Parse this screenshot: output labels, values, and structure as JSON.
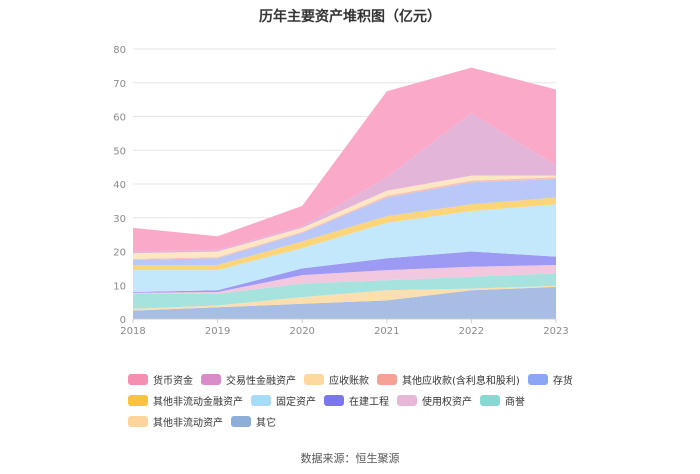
{
  "chart_data": {
    "type": "area",
    "stacked": true,
    "title": "历年主要资产堆积图（亿元）",
    "x": [
      "2018",
      "2019",
      "2020",
      "2021",
      "2022",
      "2023"
    ],
    "ylim": [
      0,
      80
    ],
    "yticks": [
      0,
      10,
      20,
      30,
      40,
      50,
      60,
      70,
      80
    ],
    "grid": true,
    "legend_position": "bottom",
    "series": [
      {
        "name": "其它",
        "color": "#a7bde3",
        "values": [
          2.5,
          3.5,
          4.5,
          5.5,
          8.5,
          9.5
        ]
      },
      {
        "name": "其他非流动资产",
        "color": "#fddfae",
        "values": [
          0.5,
          0.5,
          2.0,
          3.0,
          0.5,
          0.3
        ]
      },
      {
        "name": "商誉",
        "color": "#a6e3df",
        "values": [
          4.5,
          3.5,
          4.0,
          3.0,
          3.5,
          3.7
        ]
      },
      {
        "name": "使用权资产",
        "color": "#f2c8df",
        "values": [
          0.3,
          0.5,
          2.5,
          3.0,
          3.0,
          2.5
        ]
      },
      {
        "name": "在建工程",
        "color": "#9d9af3",
        "values": [
          0.2,
          0.5,
          2.0,
          3.5,
          4.5,
          2.5
        ]
      },
      {
        "name": "固定资产",
        "color": "#c3e8fc",
        "values": [
          6.5,
          6.0,
          6.0,
          10.5,
          12.0,
          15.5
        ]
      },
      {
        "name": "其他非流动金融资产",
        "color": "#fcd57a",
        "values": [
          1.5,
          1.5,
          2.0,
          2.0,
          2.0,
          2.0
        ]
      },
      {
        "name": "存货",
        "color": "#b9c8f8",
        "values": [
          1.5,
          2.0,
          2.5,
          5.5,
          6.5,
          5.5
        ]
      },
      {
        "name": "其他应收款(含利息和股利)",
        "color": "#f9c0b3",
        "values": [
          0.3,
          0.3,
          0.3,
          0.5,
          0.5,
          0.5
        ]
      },
      {
        "name": "应收账款",
        "color": "#fde6c4",
        "values": [
          1.7,
          1.7,
          1.2,
          1.5,
          1.5,
          0.5
        ]
      },
      {
        "name": "交易性金融资产",
        "color": "#e3b5d9",
        "values": [
          0.5,
          0.5,
          0.5,
          4.0,
          18.5,
          3.0
        ]
      },
      {
        "name": "货币资金",
        "color": "#fba9c8",
        "values": [
          7.0,
          4.0,
          6.0,
          25.5,
          13.5,
          22.5
        ]
      }
    ]
  },
  "legend": [
    {
      "name": "货币资金",
      "color": "#f48fb1"
    },
    {
      "name": "交易性金融资产",
      "color": "#d98cc8"
    },
    {
      "name": "应收账款",
      "color": "#fdd9a0"
    },
    {
      "name": "其他应收款(含利息和股利)",
      "color": "#f6a195"
    },
    {
      "name": "存货",
      "color": "#8ba7f3"
    },
    {
      "name": "其他非流动金融资产",
      "color": "#fbc23d"
    },
    {
      "name": "固定资产",
      "color": "#a7dcf9"
    },
    {
      "name": "在建工程",
      "color": "#7a76f0"
    },
    {
      "name": "使用权资产",
      "color": "#e8b7d6"
    },
    {
      "name": "商誉",
      "color": "#86d9d2"
    },
    {
      "name": "其他非流动资产",
      "color": "#fdd49c"
    },
    {
      "name": "其它",
      "color": "#8caed9"
    }
  ],
  "source": "数据来源：恒生聚源"
}
